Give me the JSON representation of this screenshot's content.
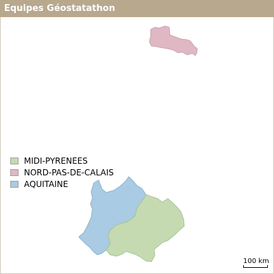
{
  "header": {
    "title": "Equipes Géostatathon"
  },
  "map": {
    "regions": [
      {
        "key": "midi_pyrenees",
        "label": "MIDI-PYRENEES",
        "color": "#c5dab1"
      },
      {
        "key": "nord_pas_de_calais",
        "label": "NORD-PAS-DE-CALAIS",
        "color": "#e0b8c3"
      },
      {
        "key": "aquitaine",
        "label": "AQUITAINE",
        "color": "#a9cbe3"
      }
    ],
    "scale_label": "100 km"
  }
}
